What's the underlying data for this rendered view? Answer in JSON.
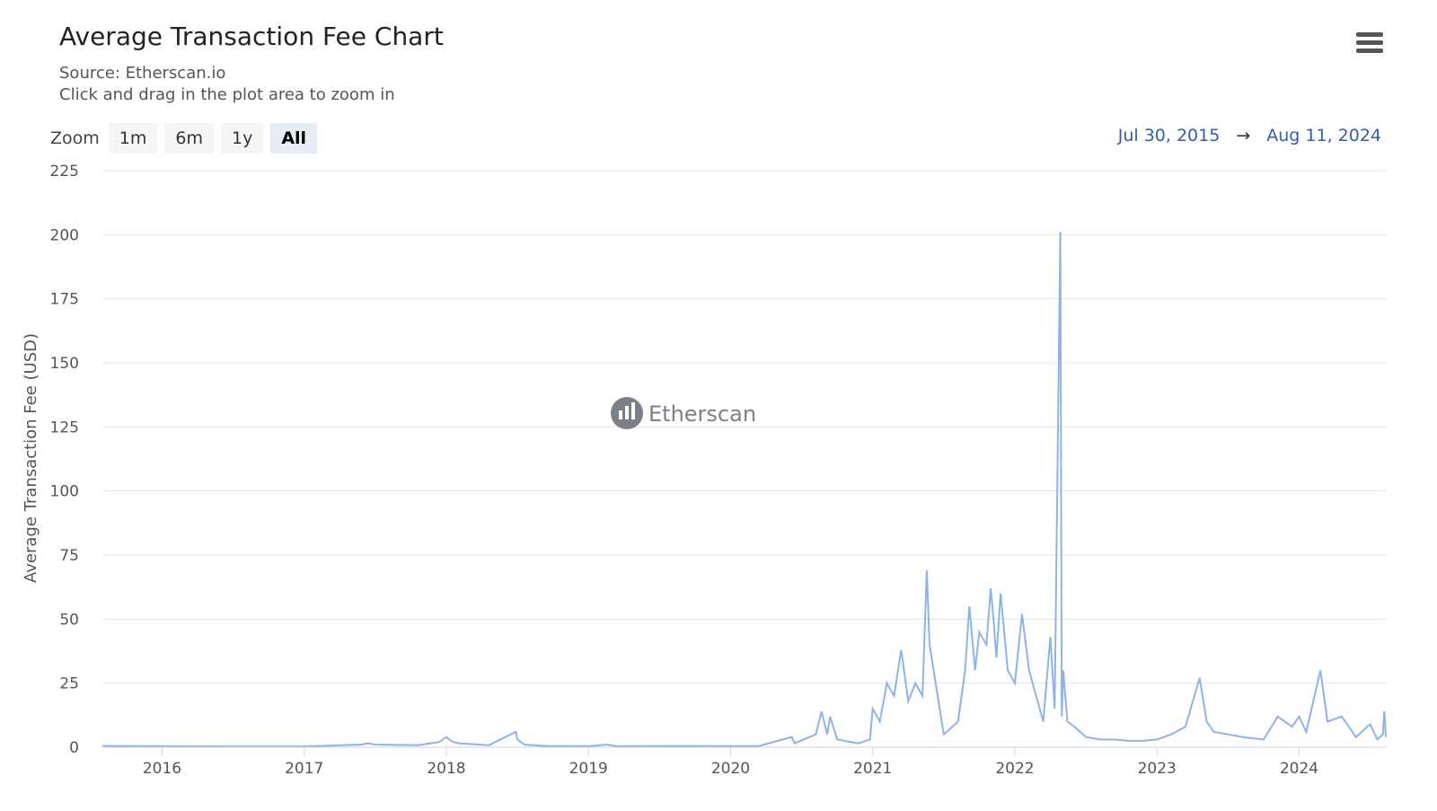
{
  "title": "Average Transaction Fee Chart",
  "subtitle_source": "Source: Etherscan.io",
  "subtitle_hint": "Click and drag in the plot area to zoom in",
  "menu_icon": "hamburger-menu-icon",
  "zoom": {
    "label": "Zoom",
    "buttons": [
      "1m",
      "6m",
      "1y",
      "All"
    ],
    "active": "All"
  },
  "range": {
    "from": "Jul 30, 2015",
    "arrow": "→",
    "to": "Aug 11, 2024"
  },
  "watermark": "Etherscan",
  "colors": {
    "line": "#8db4e6",
    "grid": "#e6e6e6",
    "range_text": "#335cad"
  },
  "chart_data": {
    "type": "line",
    "ylabel": "Average Transaction Fee (USD)",
    "xlabel": "",
    "ylim": [
      0,
      225
    ],
    "yticks": [
      0,
      25,
      50,
      75,
      100,
      125,
      150,
      175,
      200,
      225
    ],
    "xticks": [
      "2016",
      "2017",
      "2018",
      "2019",
      "2020",
      "2021",
      "2022",
      "2023",
      "2024"
    ],
    "xrange": [
      2015.58,
      2024.61
    ],
    "grid": true,
    "series": [
      {
        "x": [
          2015.58,
          2016.0,
          2016.5,
          2017.0,
          2017.4,
          2017.45,
          2017.5,
          2017.8,
          2017.95,
          2018.0,
          2018.02,
          2018.05,
          2018.1,
          2018.3,
          2018.49,
          2018.5,
          2018.55,
          2018.7,
          2019.0,
          2019.13,
          2019.2,
          2019.6,
          2020.0,
          2020.2,
          2020.43,
          2020.45,
          2020.6,
          2020.64,
          2020.68,
          2020.7,
          2020.75,
          2020.9,
          2020.98,
          2021.0,
          2021.05,
          2021.1,
          2021.15,
          2021.2,
          2021.25,
          2021.3,
          2021.35,
          2021.38,
          2021.4,
          2021.5,
          2021.6,
          2021.65,
          2021.68,
          2021.72,
          2021.75,
          2021.8,
          2021.83,
          2021.85,
          2021.87,
          2021.9,
          2021.95,
          2022.0,
          2022.05,
          2022.1,
          2022.15,
          2022.2,
          2022.25,
          2022.28,
          2022.32,
          2022.33,
          2022.34,
          2022.37,
          2022.42,
          2022.5,
          2022.6,
          2022.7,
          2022.8,
          2022.9,
          2023.0,
          2023.1,
          2023.2,
          2023.3,
          2023.35,
          2023.4,
          2023.5,
          2023.6,
          2023.75,
          2023.85,
          2023.95,
          2024.0,
          2024.05,
          2024.15,
          2024.2,
          2024.3,
          2024.4,
          2024.5,
          2024.55,
          2024.59,
          2024.6,
          2024.61
        ],
        "y": [
          0.5,
          0.4,
          0.3,
          0.3,
          1.0,
          1.5,
          1.0,
          0.8,
          2.0,
          4.0,
          3.0,
          2.0,
          1.5,
          0.8,
          6.0,
          3.0,
          1.0,
          0.5,
          0.4,
          1.0,
          0.4,
          0.5,
          0.4,
          0.5,
          4.0,
          1.5,
          5.0,
          14.0,
          5.0,
          12.0,
          3.0,
          1.5,
          3.0,
          15.0,
          10.0,
          25.0,
          20.0,
          38.0,
          18.0,
          25.0,
          20.0,
          69.0,
          40.0,
          5.0,
          10.0,
          30.0,
          55.0,
          30.0,
          45.0,
          40.0,
          62.0,
          50.0,
          35.0,
          60.0,
          30.0,
          25.0,
          52.0,
          30.0,
          20.0,
          10.0,
          43.0,
          15.0,
          201.0,
          12.0,
          30.0,
          10.0,
          8.0,
          4.0,
          3.0,
          3.0,
          2.5,
          2.5,
          3.0,
          5.0,
          8.0,
          27.0,
          10.0,
          6.0,
          5.0,
          4.0,
          3.0,
          12.0,
          8.0,
          12.0,
          6.0,
          30.0,
          10.0,
          12.0,
          4.0,
          9.0,
          3.0,
          5.0,
          14.0,
          4.0
        ]
      }
    ]
  }
}
